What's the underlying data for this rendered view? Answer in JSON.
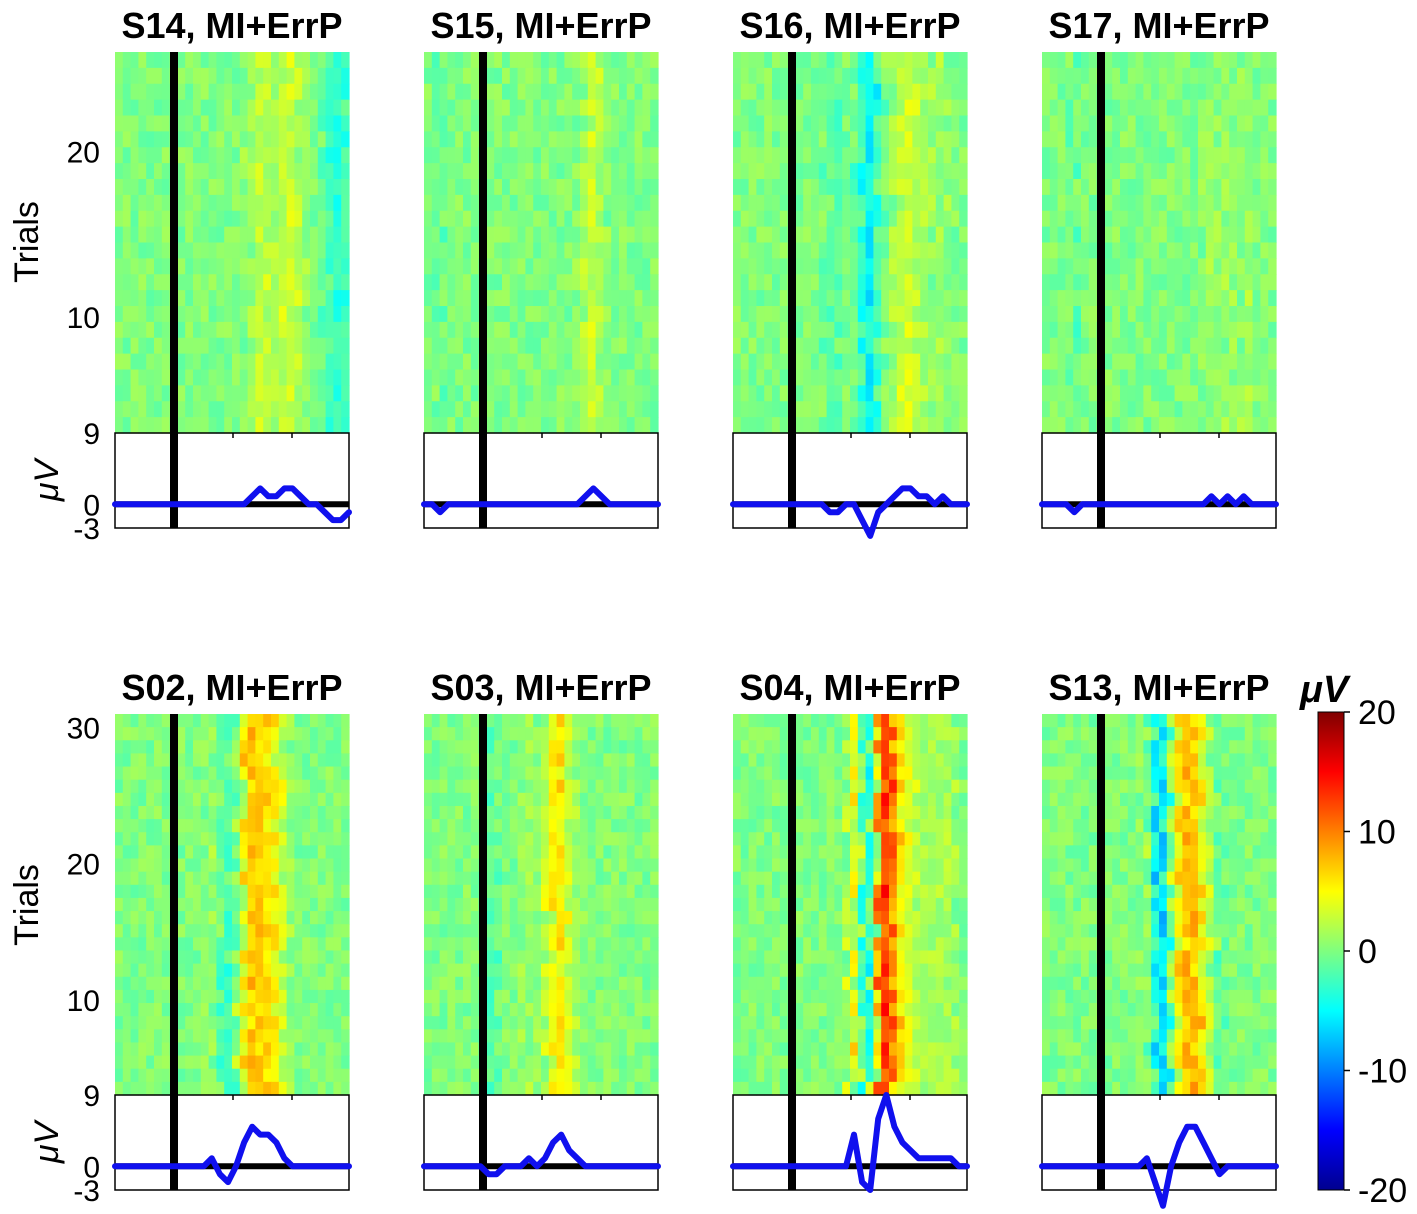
{
  "chart_data": {
    "type": "heatmap",
    "description_units": "ERP images: per-trial EEG amplitude (color, µV) with averaged waveform (µV) below each panel; vertical black line marks event onset",
    "colorbar": {
      "label": "μV",
      "limits": [
        -20,
        20
      ],
      "ticks": [
        "20",
        "10",
        "0",
        "-10",
        "-20"
      ]
    },
    "rows": [
      {
        "ylabel": "Trials",
        "trial_ticks": [
          "20",
          "10"
        ],
        "trial_range": [
          3,
          26
        ],
        "panels": [
          {
            "title": "S14, MI+ErrP",
            "waveform": [
              0,
              0,
              0,
              0,
              0,
              0,
              0,
              0,
              0,
              0,
              0,
              0,
              0,
              0,
              0,
              0,
              0,
              1,
              2,
              1,
              1,
              2,
              2,
              1,
              0,
              0,
              -1,
              -2,
              -2,
              -1
            ]
          },
          {
            "title": "S15, MI+ErrP",
            "waveform": [
              0,
              0,
              -1,
              0,
              0,
              0,
              0,
              0,
              0,
              0,
              0,
              0,
              0,
              0,
              0,
              0,
              0,
              0,
              0,
              0,
              1,
              2,
              1,
              0,
              0,
              0,
              0,
              0,
              0,
              0
            ]
          },
          {
            "title": "S16, MI+ErrP",
            "waveform": [
              0,
              0,
              0,
              0,
              0,
              0,
              0,
              0,
              0,
              0,
              0,
              0,
              -1,
              -1,
              0,
              0,
              -2,
              -4,
              -1,
              0,
              1,
              2,
              2,
              1,
              1,
              0,
              1,
              0,
              0,
              0
            ]
          },
          {
            "title": "S17, MI+ErrP",
            "waveform": [
              0,
              0,
              0,
              0,
              -1,
              0,
              0,
              0,
              0,
              0,
              0,
              0,
              0,
              0,
              0,
              0,
              0,
              0,
              0,
              0,
              0,
              1,
              0,
              1,
              0,
              1,
              0,
              0,
              0,
              0
            ]
          }
        ]
      },
      {
        "ylabel": "Trials",
        "trial_ticks": [
          "30",
          "20",
          "10"
        ],
        "trial_range": [
          3,
          31
        ],
        "panels": [
          {
            "title": "S02, MI+ErrP",
            "waveform": [
              0,
              0,
              0,
              0,
              0,
              0,
              0,
              0,
              0,
              0,
              0,
              0,
              1,
              -1,
              -2,
              0,
              3,
              5,
              4,
              4,
              3,
              1,
              0,
              0,
              0,
              0,
              0,
              0,
              0,
              0
            ]
          },
          {
            "title": "S03, MI+ErrP",
            "waveform": [
              0,
              0,
              0,
              0,
              0,
              0,
              0,
              0,
              -1,
              -1,
              0,
              0,
              0,
              1,
              0,
              1,
              3,
              4,
              2,
              1,
              0,
              0,
              0,
              0,
              0,
              0,
              0,
              0,
              0,
              0
            ]
          },
          {
            "title": "S04, MI+ErrP",
            "waveform": [
              0,
              0,
              0,
              0,
              0,
              0,
              0,
              0,
              0,
              0,
              0,
              0,
              0,
              0,
              0,
              4,
              -2,
              -3,
              6,
              9,
              5,
              3,
              2,
              1,
              1,
              1,
              1,
              1,
              0,
              0
            ]
          },
          {
            "title": "S13, MI+ErrP",
            "waveform": [
              0,
              0,
              0,
              0,
              0,
              0,
              0,
              0,
              0,
              0,
              0,
              0,
              0,
              1,
              -2,
              -5,
              0,
              3,
              5,
              5,
              3,
              1,
              -1,
              0,
              0,
              0,
              0,
              0,
              0,
              0
            ]
          }
        ]
      }
    ],
    "waveform_axis": {
      "label": "μV",
      "ticks": [
        "9",
        "0",
        "-3"
      ],
      "ylim": [
        -3,
        9
      ]
    }
  }
}
